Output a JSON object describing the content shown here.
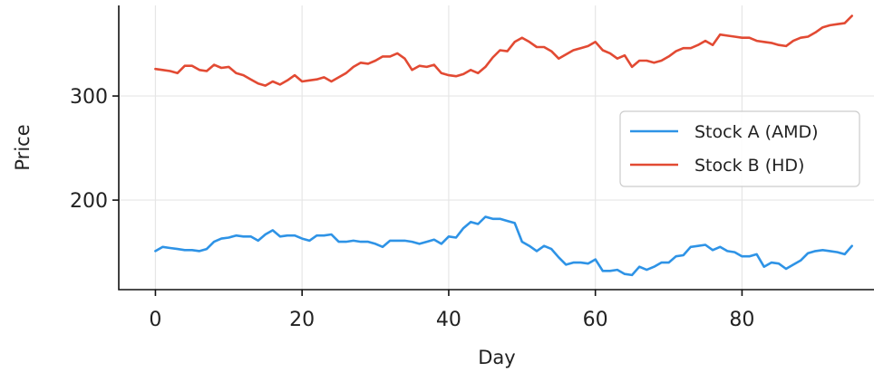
{
  "chart_data": {
    "type": "line",
    "title": "",
    "xlabel": "Day",
    "ylabel": "Price",
    "xlim": [
      -5,
      98
    ],
    "ylim": [
      114,
      387
    ],
    "xticks": [
      0,
      20,
      40,
      60,
      80
    ],
    "yticks": [
      200,
      300
    ],
    "grid": true,
    "legend_position": "center-right",
    "x": [
      0,
      1,
      2,
      3,
      4,
      5,
      6,
      7,
      8,
      9,
      10,
      11,
      12,
      13,
      14,
      15,
      16,
      17,
      18,
      19,
      20,
      21,
      22,
      23,
      24,
      25,
      26,
      27,
      28,
      29,
      30,
      31,
      32,
      33,
      34,
      35,
      36,
      37,
      38,
      39,
      40,
      41,
      42,
      43,
      44,
      45,
      46,
      47,
      48,
      49,
      50,
      51,
      52,
      53,
      54,
      55,
      56,
      57,
      58,
      59,
      60,
      61,
      62,
      63,
      64,
      65,
      66,
      67,
      68,
      69,
      70,
      71,
      72,
      73,
      74,
      75,
      76,
      77,
      78,
      79,
      80,
      81,
      82,
      83,
      84,
      85,
      86,
      87,
      88,
      89,
      90,
      91,
      92,
      93,
      94,
      95
    ],
    "series": [
      {
        "name": "Stock A (AMD)",
        "color": "#2e93e6",
        "values": [
          151,
          155,
          154,
          153,
          152,
          152,
          151,
          153,
          160,
          163,
          164,
          166,
          165,
          165,
          161,
          167,
          171,
          165,
          166,
          166,
          163,
          161,
          166,
          166,
          167,
          160,
          160,
          161,
          160,
          160,
          158,
          155,
          161,
          161,
          161,
          160,
          158,
          160,
          162,
          158,
          165,
          164,
          173,
          179,
          177,
          184,
          182,
          182,
          180,
          178,
          160,
          156,
          151,
          156,
          153,
          145,
          138,
          140,
          140,
          139,
          143,
          132,
          132,
          133,
          129,
          128,
          136,
          133,
          136,
          140,
          140,
          146,
          147,
          155,
          156,
          157,
          152,
          155,
          151,
          150,
          146,
          146,
          148,
          136,
          140,
          139,
          134,
          138,
          142,
          149,
          151,
          152,
          151,
          150,
          148,
          156
        ]
      },
      {
        "name": "Stock B (HD)",
        "color": "#e24a33",
        "values": [
          326,
          325,
          324,
          322,
          329,
          329,
          325,
          324,
          330,
          327,
          328,
          322,
          320,
          316,
          312,
          310,
          314,
          311,
          315,
          320,
          314,
          315,
          316,
          318,
          314,
          318,
          322,
          328,
          332,
          331,
          334,
          338,
          338,
          341,
          336,
          325,
          329,
          328,
          330,
          322,
          320,
          319,
          321,
          325,
          322,
          328,
          337,
          344,
          343,
          352,
          356,
          352,
          347,
          347,
          343,
          336,
          340,
          344,
          346,
          348,
          352,
          344,
          341,
          336,
          339,
          328,
          334,
          334,
          332,
          334,
          338,
          343,
          346,
          346,
          349,
          353,
          349,
          359,
          358,
          357,
          356,
          356,
          353,
          352,
          351,
          349,
          348,
          353,
          356,
          357,
          361,
          366,
          368,
          369,
          370,
          377
        ]
      }
    ]
  }
}
